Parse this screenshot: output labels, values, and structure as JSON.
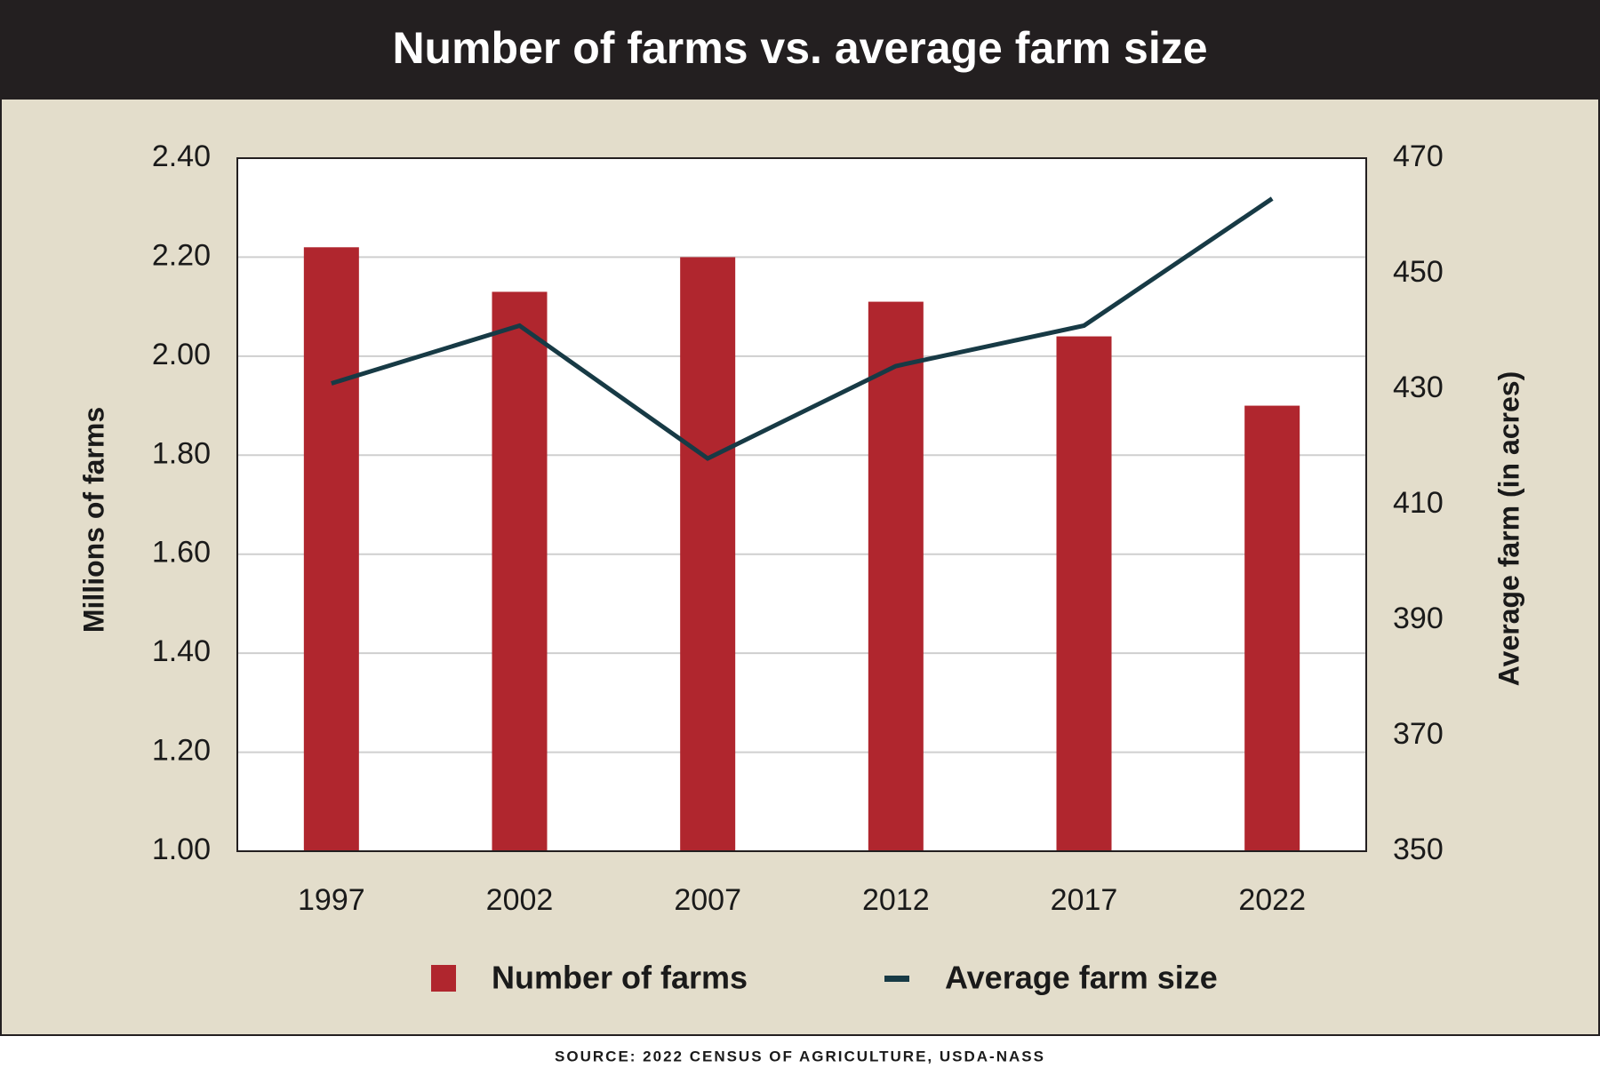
{
  "chart_data": {
    "type": "bar-line",
    "title": "Number of farms vs. average farm size",
    "source": "SOURCE: 2022 CENSUS OF AGRICULTURE, USDA-NASS",
    "y_label": "Millions of farms",
    "y2_label": "Average farm (in acres)",
    "categories": [
      "1997",
      "2002",
      "2007",
      "2012",
      "2017",
      "2022"
    ],
    "series": [
      {
        "name": "Number of farms",
        "type": "bar",
        "color": "#b0262e",
        "values": [
          2.22,
          2.13,
          2.2,
          2.11,
          2.04,
          1.9
        ]
      },
      {
        "name": "Average farm size",
        "type": "line",
        "axis": "y2",
        "color": "#173a45",
        "values": [
          431,
          441,
          418,
          434,
          441,
          463
        ]
      }
    ],
    "ylim": [
      1.0,
      2.4
    ],
    "yticks": [
      {
        "value": 1.0,
        "label": "1.00"
      },
      {
        "value": 1.2,
        "label": "1.20"
      },
      {
        "value": 1.4,
        "label": "1.40"
      },
      {
        "value": 1.6,
        "label": "1.60"
      },
      {
        "value": 1.8,
        "label": "1.80"
      },
      {
        "value": 2.0,
        "label": "2.00"
      },
      {
        "value": 2.2,
        "label": "2.20"
      },
      {
        "value": 2.4,
        "label": "2.40"
      }
    ],
    "y2lim": [
      350,
      470
    ],
    "y2ticks": [
      350,
      370,
      390,
      410,
      430,
      450,
      470
    ],
    "grid": true
  }
}
